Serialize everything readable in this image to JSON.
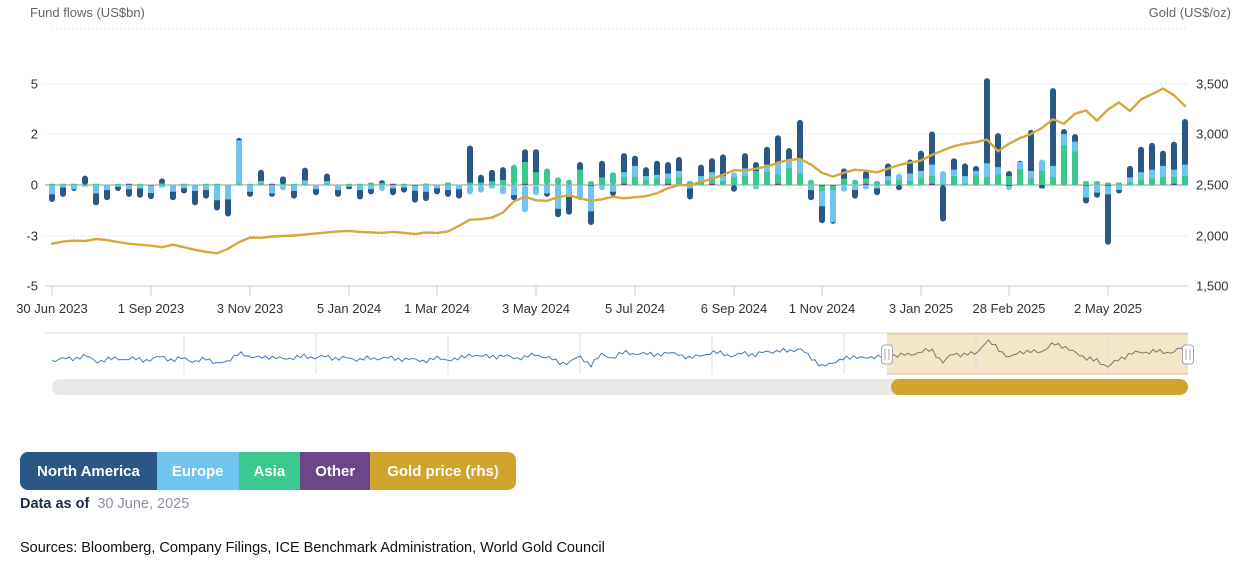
{
  "header": {
    "left_title": "Fund flows (US$bn)",
    "right_title": "Gold (US$/oz)"
  },
  "chart_data": {
    "type": "bar",
    "subtype": "weekly stacked fund-flow columns (left axis) with gold price line (right axis)",
    "left_axis": {
      "title": "Fund flows (US$bn)",
      "tick_labels": [
        "5",
        "2",
        "0",
        "-3",
        "-5"
      ],
      "tick_values": [
        5,
        2,
        0,
        -3,
        -5
      ]
    },
    "right_axis": {
      "title": "Gold (US$/oz)",
      "tick_labels": [
        "3,500",
        "3,000",
        "2,500",
        "2,000",
        "1,500"
      ],
      "tick_values": [
        3500,
        3000,
        2500,
        2000,
        1500
      ]
    },
    "x_tick_labels": [
      "30 Jun 2023",
      "1 Sep 2023",
      "3 Nov 2023",
      "5 Jan 2024",
      "1 Mar 2024",
      "3 May 2024",
      "5 Jul 2024",
      "6 Sep 2024",
      "1 Nov 2024",
      "3 Jan 2025",
      "28 Feb 2025",
      "2 May 2025"
    ],
    "x_tick_weeks": [
      0,
      9,
      18,
      27,
      35,
      44,
      53,
      62,
      70,
      79,
      87,
      96
    ],
    "grid": "dotted horizontal gridlines, solid zero line",
    "series": [
      {
        "name": "North America",
        "color": "#2a5784",
        "values": [
          -0.45,
          -0.55,
          -0.1,
          0.35,
          -0.7,
          -0.6,
          -0.25,
          -0.45,
          -0.55,
          -0.35,
          0.2,
          -0.5,
          -0.3,
          -0.85,
          -0.5,
          -0.6,
          -1.0,
          0.1,
          -0.3,
          0.45,
          -0.2,
          0.3,
          -0.45,
          0.5,
          -0.35,
          0.3,
          -0.4,
          -0.15,
          -0.55,
          -0.3,
          0.1,
          -0.4,
          -0.3,
          -0.7,
          -0.55,
          -0.35,
          -0.4,
          -0.55,
          1.45,
          0.3,
          0.45,
          0.5,
          -0.3,
          0.5,
          0.9,
          -0.2,
          -0.5,
          -1.05,
          0.3,
          -0.8,
          0.65,
          -0.25,
          0.75,
          0.4,
          0.35,
          0.55,
          0.45,
          0.55,
          -0.65,
          0.45,
          0.55,
          0.85,
          -0.4,
          0.6,
          0.35,
          0.7,
          1.1,
          0.5,
          1.85,
          -0.6,
          -1.0,
          -0.1,
          0.4,
          -0.5,
          0.3,
          -0.4,
          0.5,
          -0.3,
          0.55,
          0.8,
          1.35,
          -2.15,
          0.45,
          0.5,
          0.2,
          4.5,
          1.35,
          0.2,
          0.05,
          1.7,
          -0.2,
          4.0,
          0.3,
          0.3,
          -0.35,
          -0.3,
          -2.8,
          -0.2,
          0.45,
          1.0,
          1.05,
          0.6,
          1.1,
          2.1
        ]
      },
      {
        "name": "Europe",
        "color": "#6fc5f0",
        "values": [
          -0.55,
          -0.15,
          -0.25,
          -0.1,
          -0.5,
          -0.3,
          -0.1,
          -0.25,
          -0.2,
          -0.45,
          -0.15,
          -0.4,
          -0.2,
          -0.35,
          -0.3,
          -0.9,
          -0.85,
          1.7,
          -0.4,
          0.1,
          -0.5,
          -0.3,
          -0.35,
          0.15,
          -0.25,
          0.1,
          -0.3,
          -0.1,
          -0.3,
          -0.25,
          -0.35,
          -0.2,
          -0.15,
          -0.3,
          -0.4,
          -0.2,
          -0.3,
          -0.25,
          -0.55,
          -0.45,
          -0.2,
          -0.55,
          -0.6,
          -1.6,
          -0.6,
          -0.5,
          -1.4,
          -0.7,
          -0.9,
          -1.5,
          -0.3,
          -0.4,
          0.2,
          0.45,
          0.15,
          0.15,
          0.2,
          0.25,
          -0.2,
          0.2,
          0.2,
          0.2,
          0.2,
          0.3,
          -0.25,
          0.3,
          0.45,
          0.3,
          0.55,
          -0.3,
          -0.9,
          -1.9,
          -0.4,
          -0.3,
          -0.25,
          -0.2,
          0.2,
          0.25,
          0.3,
          0.3,
          0.45,
          0.5,
          0.25,
          0.3,
          0.15,
          0.55,
          0.3,
          -0.25,
          0.3,
          0.3,
          0.45,
          0.45,
          0.45,
          0.4,
          -0.7,
          -0.45,
          -0.5,
          -0.3,
          0.2,
          0.3,
          0.35,
          0.45,
          0.3,
          0.45
        ]
      },
      {
        "name": "Asia",
        "color": "#3cc98e",
        "values": [
          0.05,
          0.03,
          0.05,
          0.02,
          0.03,
          0,
          0.04,
          0,
          0.05,
          0,
          0.06,
          0,
          0.05,
          0,
          0.04,
          0.05,
          0,
          0.05,
          0.03,
          0.05,
          0,
          0.04,
          0.05,
          0.03,
          0,
          0.05,
          0,
          0.03,
          0.05,
          0.1,
          0.08,
          0,
          0.05,
          0,
          0.06,
          0,
          0.1,
          0,
          0.1,
          0.1,
          0.15,
          0.2,
          0.8,
          0.85,
          0.5,
          0.65,
          0.3,
          0.2,
          0.6,
          0.15,
          0.3,
          0.5,
          0.25,
          0.3,
          0.2,
          0.25,
          0.2,
          0.3,
          0.15,
          0.15,
          0.25,
          0.15,
          0.3,
          0.35,
          0.55,
          0.5,
          0.35,
          0.65,
          0.45,
          0.2,
          -0.3,
          -0.25,
          0.25,
          0.2,
          0.2,
          0.15,
          0.15,
          0.2,
          0.15,
          0.25,
          0.3,
          0.05,
          0.35,
          0.05,
          0.4,
          0.3,
          0.4,
          0.35,
          0.6,
          0.25,
          0.55,
          0.3,
          1.55,
          1.3,
          0.15,
          0.15,
          0.1,
          0.1,
          0.1,
          0.2,
          0.25,
          0.3,
          0.25,
          0.35
        ]
      },
      {
        "name": "Other",
        "color": "#6b4689",
        "values": [
          0,
          0,
          0,
          0,
          0,
          0,
          0,
          0.02,
          0,
          -0.03,
          0,
          0,
          0,
          0,
          0,
          0,
          0,
          0,
          0,
          0,
          0.02,
          0,
          0,
          0,
          0,
          0,
          0,
          0,
          0,
          0,
          0,
          0.02,
          0,
          -0.04,
          0,
          0,
          0,
          0,
          0,
          0,
          0,
          0,
          0,
          0.05,
          0,
          0,
          0,
          0,
          0,
          -0.05,
          0,
          0,
          0.05,
          0,
          0,
          0,
          0.05,
          0,
          0,
          0,
          0.05,
          0,
          0,
          0,
          0,
          0,
          0.05,
          0,
          0,
          0,
          -0.05,
          -0.04,
          0,
          0,
          0.05,
          0,
          0,
          0,
          0,
          0,
          0.05,
          0,
          0,
          0,
          0,
          0,
          0,
          -0.05,
          0,
          0,
          0,
          0,
          0,
          0,
          -0.04,
          0,
          -0.05,
          0,
          0,
          0,
          0,
          0,
          0.05,
          0
        ]
      }
    ],
    "line_series": {
      "name": "Gold price (rhs)",
      "color": "#d4a83c",
      "axis": "right",
      "values": [
        1925,
        1945,
        1955,
        1950,
        1970,
        1960,
        1940,
        1925,
        1915,
        1905,
        1890,
        1915,
        1890,
        1865,
        1845,
        1830,
        1875,
        1940,
        1985,
        1982,
        1995,
        2000,
        2005,
        2015,
        2025,
        2035,
        2045,
        2050,
        2040,
        2035,
        2030,
        2040,
        2030,
        2020,
        2035,
        2030,
        2045,
        2100,
        2160,
        2165,
        2180,
        2230,
        2340,
        2385,
        2350,
        2345,
        2380,
        2400,
        2370,
        2345,
        2360,
        2385,
        2370,
        2380,
        2390,
        2420,
        2470,
        2500,
        2498,
        2530,
        2560,
        2600,
        2645,
        2640,
        2660,
        2680,
        2720,
        2745,
        2755,
        2700,
        2620,
        2582,
        2620,
        2650,
        2640,
        2625,
        2660,
        2695,
        2720,
        2740,
        2795,
        2840,
        2880,
        2905,
        2920,
        2945,
        2830,
        2905,
        2960,
        3000,
        3060,
        3145,
        3100,
        3200,
        3230,
        3130,
        3240,
        3310,
        3225,
        3340,
        3390,
        3445,
        3380,
        3275
      ]
    }
  },
  "navigator": {
    "selected_range_frac": [
      0.735,
      1.0
    ],
    "sparkline_color": "#4679b2",
    "sparkline_selected_color": "#7b7b6c",
    "selection_fill": "#f3e7c8",
    "selection_border": "#d7be8c",
    "scrollbar_track_color": "#e9e9e9",
    "scrollbar_thumb_color": "#cfa42f"
  },
  "legend": {
    "items": [
      {
        "label": "North America",
        "color": "#2a5784",
        "slug": "north-america"
      },
      {
        "label": "Europe",
        "color": "#6fc5f0",
        "slug": "europe"
      },
      {
        "label": "Asia",
        "color": "#3cc98e",
        "slug": "asia"
      },
      {
        "label": "Other",
        "color": "#6b4689",
        "slug": "other"
      },
      {
        "label": "Gold price (rhs)",
        "color": "#cfa42f",
        "slug": "gold-price-rhs"
      }
    ]
  },
  "footer": {
    "data_as_of_label": "Data as of",
    "data_as_of_value": "30 June, 2025",
    "sources": "Sources: Bloomberg, Company Filings, ICE Benchmark Administration, World Gold Council"
  }
}
